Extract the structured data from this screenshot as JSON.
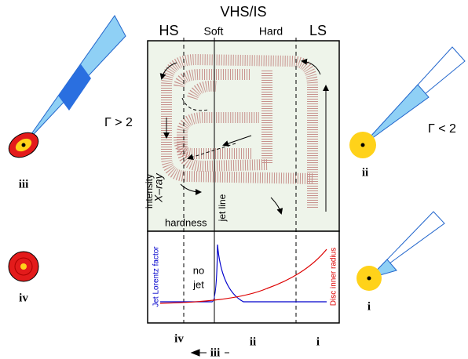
{
  "header": {
    "title": "VHS/IS",
    "states": [
      "HS",
      "Soft",
      "Hard",
      "LS"
    ]
  },
  "upper_panel": {
    "y_label": [
      "X–ray",
      "intensity"
    ],
    "x_label": "hardness",
    "jet_line": "jet line"
  },
  "lower_panel": {
    "no_jet": [
      "no",
      "jet"
    ],
    "left_label": "Jet Lorentz factor",
    "right_label": "Disc inner radius"
  },
  "sketches": [
    {
      "label": "iii",
      "gamma": "Γ > 2"
    },
    {
      "label": "ii",
      "gamma": "Γ < 2"
    },
    {
      "label": "iv"
    },
    {
      "label": "i"
    }
  ],
  "bottom_labels": [
    "iv",
    "ii",
    "i"
  ],
  "bottom_arrow": "iii"
}
